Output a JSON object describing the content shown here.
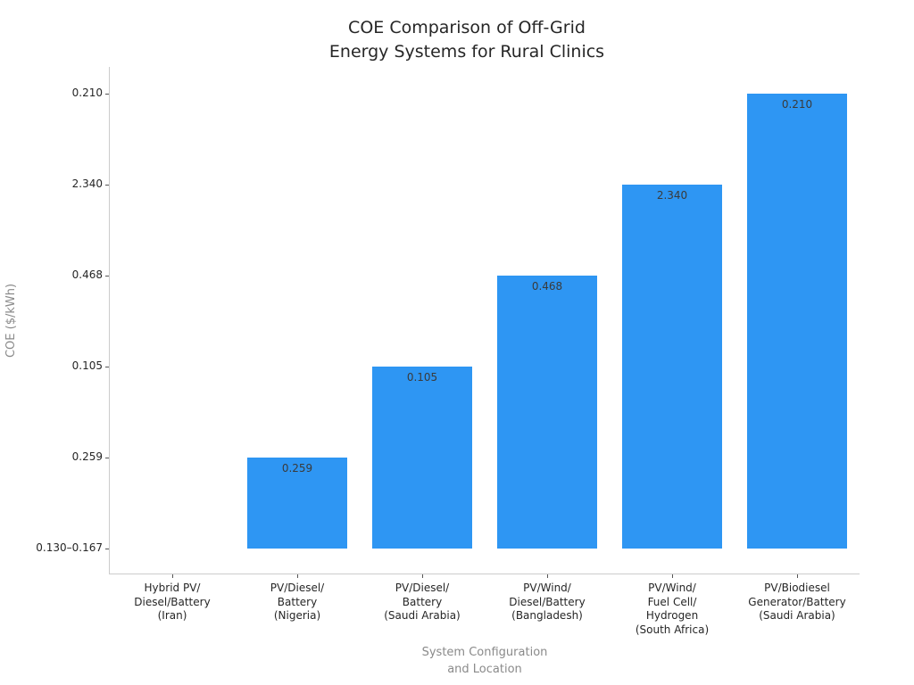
{
  "chart_data": {
    "type": "bar",
    "title": "COE Comparison of Off-Grid\nEnergy Systems for Rural Clinics",
    "xlabel": "System Configuration\nand Location",
    "ylabel": "COE ($/kWh)",
    "categories": [
      "Hybrid PV/\nDiesel/Battery\n(Iran)",
      "PV/Diesel/\nBattery\n(Nigeria)",
      "PV/Diesel/\nBattery\n(Saudi Arabia)",
      "PV/Wind/\nDiesel/Battery\n(Bangladesh)",
      "PV/Wind/\nFuel Cell/\nHydrogen\n(South Africa)",
      "PV/Biodiesel\nGenerator/Battery\n(Saudi Arabia)"
    ],
    "values": [
      "0.130–0.167",
      "0.259",
      "0.105",
      "0.468",
      "2.340",
      "0.210"
    ],
    "y_axis_type": "categorical",
    "y_axis_note": "y-axis ticks are the COE value strings plotted in dataset order; each bar's height equals its dataset index (0–5), so the first bar has zero height",
    "y_tick_labels": [
      "0.130–0.167",
      "0.259",
      "0.105",
      "0.468",
      "2.340",
      "0.210"
    ],
    "bar_heights_index": [
      0,
      1,
      2,
      3,
      4,
      5
    ],
    "bar_labels": [
      "",
      "0.259",
      "0.105",
      "0.468",
      "2.340",
      "0.210"
    ],
    "grid": false,
    "legend": "none",
    "colors": {
      "bar": "#2e96f3",
      "title_text": "#262626",
      "tick_label_text": "#262626",
      "bar_label_text": "#3a3a3a",
      "axis_label_text": "#8a8a8a",
      "spine": "#cccccc",
      "tick_mark": "#555555",
      "background": "#ffffff"
    }
  }
}
